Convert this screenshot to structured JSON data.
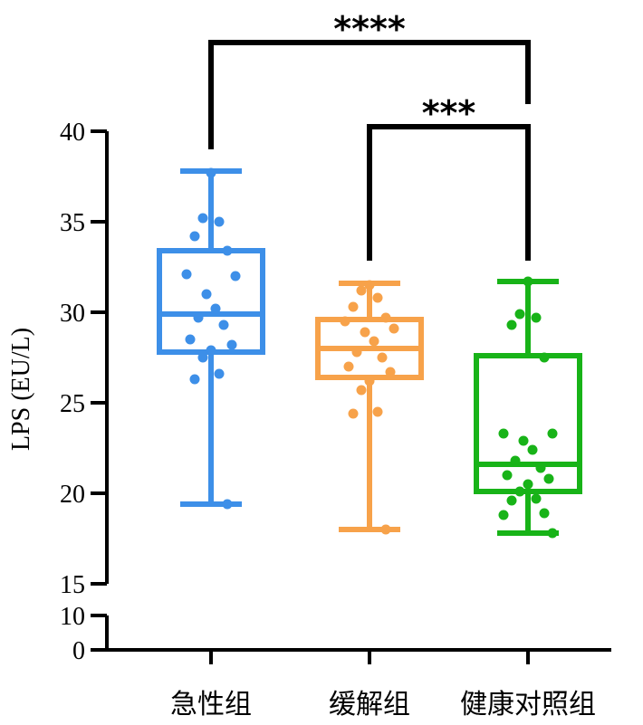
{
  "chart_data": {
    "type": "box",
    "ylabel": "LPS (EU/L)",
    "y_axis_segments": [
      {
        "range": [
          15,
          40
        ],
        "ticks": [
          15,
          20,
          25,
          30,
          35,
          40
        ]
      },
      {
        "range": [
          0,
          10
        ],
        "ticks": [
          0,
          10
        ]
      }
    ],
    "y_tick_labels": [
      "0",
      "10",
      "15",
      "20",
      "25",
      "30",
      "35",
      "40"
    ],
    "categories": [
      "急性组",
      "缓解组",
      "健康对照组"
    ],
    "groups": [
      {
        "name": "急性组",
        "color": "#3d8fe8",
        "whisker_min": 19.4,
        "q1": 27.8,
        "median": 29.9,
        "q3": 33.4,
        "whisker_max": 37.8,
        "points": [
          37.7,
          35.2,
          35.0,
          34.2,
          33.4,
          32.1,
          32.0,
          31.0,
          30.2,
          29.7,
          29.3,
          28.5,
          28.2,
          27.9,
          27.5,
          26.6,
          26.3,
          19.4
        ]
      },
      {
        "name": "缓解组",
        "color": "#f7a24a",
        "whisker_min": 18.0,
        "q1": 26.4,
        "median": 28.0,
        "q3": 29.6,
        "whisker_max": 31.6,
        "points": [
          31.5,
          31.2,
          30.8,
          30.3,
          29.7,
          29.5,
          29.1,
          28.9,
          28.4,
          27.8,
          27.5,
          27.0,
          26.7,
          26.2,
          25.7,
          24.5,
          24.4,
          18.0
        ]
      },
      {
        "name": "健康对照组",
        "color": "#18b318",
        "whisker_min": 17.8,
        "q1": 20.1,
        "median": 21.6,
        "q3": 27.6,
        "whisker_max": 31.7,
        "points": [
          31.7,
          29.9,
          29.7,
          29.3,
          27.5,
          23.3,
          23.3,
          22.9,
          22.4,
          21.8,
          21.4,
          21.0,
          20.8,
          20.5,
          20.1,
          19.7,
          19.6,
          18.9,
          18.8,
          17.8
        ]
      }
    ],
    "significance": [
      {
        "from": "急性组",
        "to": "健康对照组",
        "label": "****"
      },
      {
        "from": "缓解组",
        "to": "健康对照组",
        "label": "***"
      }
    ]
  }
}
